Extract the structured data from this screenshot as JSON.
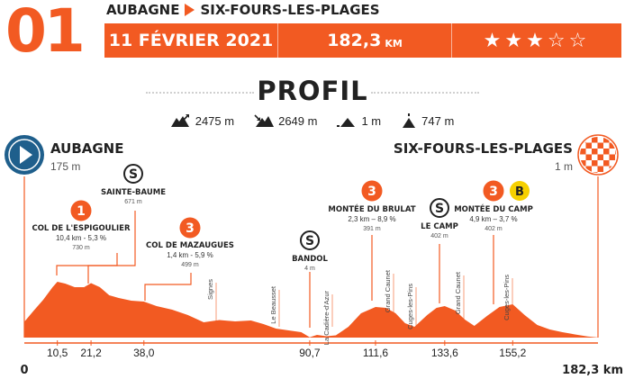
{
  "header": {
    "stage_number": "01",
    "start": "AUBAGNE",
    "finish": "SIX-FOURS-LES-PLAGES",
    "date": "11 FÉVRIER 2021",
    "distance_value": "182,3",
    "distance_unit": "KM",
    "difficulty_stars": 3,
    "difficulty_max": 5,
    "star_filled": "★",
    "star_empty": "☆"
  },
  "section_title": "PROFIL",
  "stats": [
    {
      "icon": "ascent-icon",
      "value": "2475 m"
    },
    {
      "icon": "descent-icon",
      "value": "2649 m"
    },
    {
      "icon": "min-altitude-icon",
      "value": "1 m"
    },
    {
      "icon": "max-altitude-icon",
      "value": "747 m"
    }
  ],
  "colors": {
    "accent": "#f25a22",
    "start_blue": "#1f5f8c",
    "text": "#222222"
  },
  "chart_data": {
    "type": "area",
    "xlim": [
      0,
      182.3
    ],
    "x_ticks": [
      "10,5",
      "21,2",
      "38,0",
      "90,7",
      "111,6",
      "133,6",
      "155,2"
    ],
    "x_tick_values": [
      10.5,
      21.2,
      38.0,
      90.7,
      111.6,
      133.6,
      155.2
    ],
    "x_start_label": "0",
    "x_end_label": "182,3 km",
    "x": [
      0,
      3,
      6,
      9,
      10.5,
      13,
      16,
      19,
      21.2,
      24,
      27,
      30,
      34,
      38,
      42,
      47,
      52,
      57,
      62,
      67,
      72,
      76,
      80,
      84,
      88,
      90.7,
      93,
      96,
      99,
      103,
      107,
      111.6,
      115,
      118,
      121,
      124,
      128,
      131,
      133.6,
      137,
      140,
      143,
      147,
      151,
      155.2,
      159,
      163,
      167,
      171,
      175,
      179,
      182.3
    ],
    "y": [
      175,
      300,
      420,
      560,
      620,
      600,
      560,
      560,
      605,
      560,
      470,
      440,
      410,
      400,
      350,
      310,
      250,
      170,
      195,
      180,
      190,
      150,
      100,
      80,
      60,
      4,
      30,
      15,
      25,
      120,
      270,
      340,
      330,
      270,
      160,
      120,
      250,
      330,
      350,
      300,
      200,
      130,
      240,
      340,
      370,
      250,
      140,
      90,
      60,
      35,
      12,
      1
    ],
    "start_city": {
      "name": "AUBAGNE",
      "altitude": "175 m"
    },
    "finish_city": {
      "name": "SIX-FOURS-LES-PLAGES",
      "altitude": "1 m"
    },
    "climbs": [
      {
        "badge": "1",
        "name": "COL DE L'ESPIGOULIER",
        "detail": "10,4 km - 5,3 %",
        "altitude": "730 m"
      },
      {
        "badge": "S",
        "name": "SAINTE-BAUME",
        "altitude": "671 m"
      },
      {
        "badge": "3",
        "name": "COL DE MAZAUGUES",
        "detail": "1,4 km - 5,9  %",
        "altitude": "499 m"
      },
      {
        "badge": "S",
        "name": "BANDOL",
        "altitude": "4 m"
      },
      {
        "badge": "3",
        "name": "MONTÉE DU BRULAT",
        "detail": "2,3 km – 8,9 %",
        "altitude": "391 m"
      },
      {
        "badge": "S",
        "name": "LE CAMP",
        "altitude": "402 m"
      },
      {
        "badge": "3",
        "bonus": "B",
        "name": "MONTÉE DU CAMP",
        "detail": "4,9 km – 3,7 %",
        "altitude": "402 m"
      }
    ],
    "places": [
      {
        "name": "Signes",
        "x": 58
      },
      {
        "name": "Le Beausset",
        "x": 76
      },
      {
        "name": "La Cadière-d'Azur",
        "x": 95
      },
      {
        "name": "Grand Caunet",
        "x": 108
      },
      {
        "name": "Cuges-les-Pins",
        "x": 114
      },
      {
        "name": "Grand Caunet",
        "x": 131
      },
      {
        "name": "Cuges-les-Pins",
        "x": 139
      }
    ]
  }
}
